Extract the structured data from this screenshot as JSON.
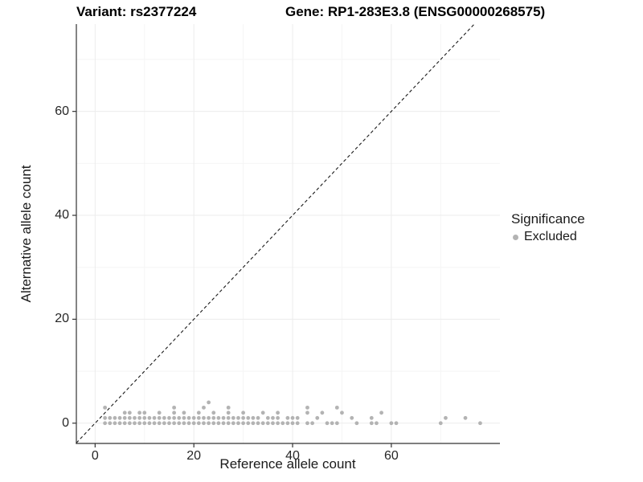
{
  "figure_title": {
    "variant": "Variant: rs2377224",
    "gene": "Gene: RP1-283E3.8 (ENSG00000268575)"
  },
  "legend": {
    "title": "Significance",
    "items": [
      {
        "label": "Excluded",
        "color": "#b3b3b3"
      }
    ]
  },
  "chart_data": {
    "type": "scatter",
    "title": "Variant: rs2377224   Gene: RP1-283E3.8 (ENSG00000268575)",
    "xlabel": "Reference allele count",
    "ylabel": "Alternative allele count",
    "x_ticks": [
      0,
      20,
      40,
      60
    ],
    "y_ticks": [
      0,
      20,
      40,
      60
    ],
    "x_minor_ticks": [
      10,
      30,
      50,
      70
    ],
    "y_minor_ticks": [
      10,
      30,
      50,
      70
    ],
    "xlim": [
      -3.8,
      82.0
    ],
    "ylim": [
      -3.9,
      76.8
    ],
    "grid": {
      "major_color": "#ececec",
      "minor_color": "#f5f5f5",
      "on": true
    },
    "axis_line_color": "#333333",
    "identity_line": {
      "equation": "y = x",
      "style": "dashed",
      "color": "#1a1a1a"
    },
    "legend_position": "right",
    "series": [
      {
        "name": "Excluded",
        "color": "#b3b3b3",
        "marker_radius": 2.4,
        "points_by_y": {
          "0": [
            2,
            3,
            4,
            5,
            6,
            7,
            8,
            9,
            10,
            11,
            12,
            13,
            14,
            15,
            16,
            17,
            18,
            19,
            20,
            21,
            22,
            23,
            24,
            25,
            26,
            27,
            28,
            29,
            30,
            31,
            32,
            33,
            34,
            35,
            36,
            37,
            38,
            39,
            40,
            41,
            43,
            44,
            47,
            48,
            49,
            53,
            56,
            57,
            60,
            61,
            70,
            78
          ],
          "1": [
            2,
            3,
            4,
            5,
            6,
            7,
            8,
            9,
            10,
            11,
            12,
            13,
            14,
            15,
            16,
            17,
            18,
            19,
            20,
            21,
            22,
            23,
            24,
            25,
            26,
            27,
            28,
            29,
            30,
            31,
            32,
            33,
            35,
            36,
            37,
            39,
            40,
            41,
            45,
            52,
            56,
            71,
            75
          ],
          "2": [
            6,
            7,
            9,
            10,
            13,
            16,
            18,
            21,
            24,
            27,
            30,
            34,
            37,
            43,
            46,
            50,
            58
          ],
          "3": [
            2,
            16,
            22,
            27,
            43,
            49
          ],
          "4": [
            23
          ]
        }
      }
    ]
  }
}
